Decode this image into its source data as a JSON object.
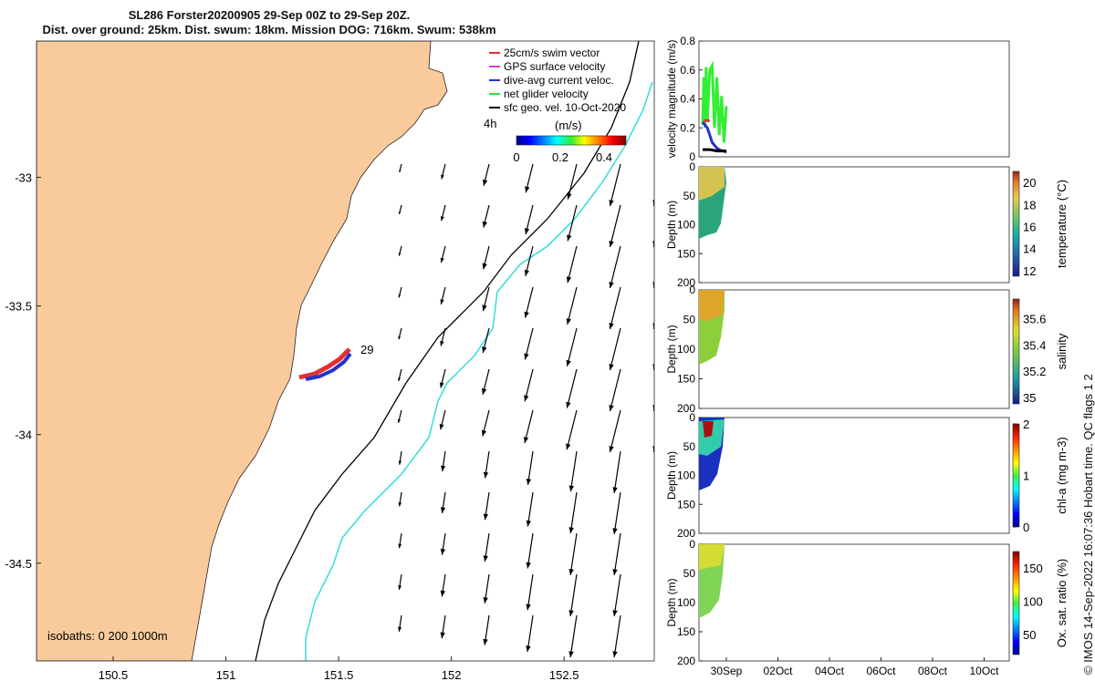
{
  "title": {
    "line1": "SL286 Forster20200905 29-Sep 00Z to 29-Sep 20Z.",
    "line2": "Dist. over ground: 25km. Dist. swum: 18km. Mission DOG: 716km. Swum: 538km"
  },
  "map": {
    "lon_ticks": [
      "150.5",
      "151",
      "151.5",
      "152",
      "152.5"
    ],
    "lon_values": [
      150.5,
      151,
      151.5,
      152,
      152.5
    ],
    "lat_ticks": [
      "-33",
      "-33.5",
      "-34",
      "-34.5"
    ],
    "lat_values": [
      -33,
      -33.5,
      -34,
      -34.5
    ],
    "xlim": [
      150.16,
      152.9
    ],
    "ylim": [
      -34.88,
      -32.47
    ],
    "legend": [
      {
        "label": "25cm/s swim vector",
        "color": "#e03030"
      },
      {
        "label": "GPS surface velocity",
        "color": "#cc44cc"
      },
      {
        "label": "dive-avg current veloc.",
        "color": "#2233cc"
      },
      {
        "label": "net glider velocity",
        "color": "#33dd33"
      },
      {
        "label": "sfc geo. vel. 10-Oct-2020",
        "color": "#000000"
      }
    ],
    "legend_extra": "4h",
    "colorbar_title": "(m/s)",
    "colorbar_ticks": [
      "0",
      "0.2",
      "0.4"
    ],
    "colorbar_values": [
      0,
      0.2,
      0.4
    ],
    "colorbar_range": [
      0,
      0.5
    ],
    "track_label": "29",
    "isobaths_label": "isobaths: 0   200  1000m",
    "land_color": "#f9cb9c",
    "isobath_200_color": "#000000",
    "isobath_1000_color": "#33dddd"
  },
  "chart_data": [
    {
      "type": "line",
      "title": "",
      "ylabel": "velocity magnitude (m/s)",
      "ylim": [
        0,
        0.8
      ],
      "yticks": [
        "0",
        "0.2",
        "0.4",
        "0.6",
        "0.8"
      ],
      "ytick_values": [
        0,
        0.2,
        0.4,
        0.6,
        0.8
      ],
      "series": [
        {
          "color": "#33ee33",
          "x": [
            0.0,
            0.05,
            0.1,
            0.15,
            0.2,
            0.3,
            0.4,
            0.5,
            0.6,
            0.7,
            0.8,
            0.9,
            1.0
          ],
          "values": [
            0.22,
            0.55,
            0.2,
            0.62,
            0.25,
            0.6,
            0.63,
            0.2,
            0.55,
            0.15,
            0.42,
            0.1,
            0.35
          ]
        },
        {
          "color": "#2233cc",
          "x": [
            0.0,
            0.1,
            0.2,
            0.3,
            0.4,
            0.5,
            0.6,
            0.7,
            0.8,
            0.9,
            1.0
          ],
          "values": [
            0.24,
            0.22,
            0.2,
            0.15,
            0.1,
            0.08,
            0.06,
            0.05,
            0.04,
            0.04,
            0.03
          ]
        },
        {
          "color": "#000000",
          "x": [
            0.0,
            0.3,
            0.6,
            1.0
          ],
          "values": [
            0.05,
            0.05,
            0.04,
            0.04
          ]
        },
        {
          "color": "#e03030",
          "x": [
            0.05,
            0.3
          ],
          "values": [
            0.25,
            0.25
          ]
        }
      ]
    },
    {
      "type": "heatmap",
      "ylabel": "Depth (m)",
      "ylim": [
        200,
        0
      ],
      "yticks": [
        "0",
        "50",
        "100",
        "150",
        "200"
      ],
      "ytick_values": [
        0,
        50,
        100,
        150,
        200
      ],
      "colorbar_label": "temperature (°C)",
      "colorbar_ticks": [
        "12",
        "14",
        "16",
        "18",
        "20"
      ],
      "colorbar_values": [
        12,
        14,
        16,
        18,
        20
      ],
      "colorbar_range": [
        11.5,
        21
      ]
    },
    {
      "type": "heatmap",
      "ylabel": "Depth (m)",
      "ylim": [
        200,
        0
      ],
      "yticks": [
        "0",
        "50",
        "100",
        "150",
        "200"
      ],
      "ytick_values": [
        0,
        50,
        100,
        150,
        200
      ],
      "colorbar_label": "salinity",
      "colorbar_ticks": [
        "35",
        "35.2",
        "35.4",
        "35.6"
      ],
      "colorbar_values": [
        35,
        35.2,
        35.4,
        35.6
      ],
      "colorbar_range": [
        34.95,
        35.75
      ]
    },
    {
      "type": "heatmap",
      "ylabel": "Depth (m)",
      "ylim": [
        200,
        0
      ],
      "yticks": [
        "0",
        "50",
        "100",
        "150",
        "200"
      ],
      "ytick_values": [
        0,
        50,
        100,
        150,
        200
      ],
      "colorbar_label": "chl-a (mg m-3)",
      "colorbar_ticks": [
        "0",
        "1",
        "2"
      ],
      "colorbar_values": [
        0,
        1,
        2
      ],
      "colorbar_range": [
        0,
        2
      ]
    },
    {
      "type": "heatmap",
      "ylabel": "Depth (m)",
      "ylim": [
        200,
        0
      ],
      "yticks": [
        "0",
        "50",
        "100",
        "150",
        "200"
      ],
      "ytick_values": [
        0,
        50,
        100,
        150,
        200
      ],
      "colorbar_label": "Ox. sat. ratio (%)",
      "colorbar_ticks": [
        "50",
        "100",
        "150"
      ],
      "colorbar_values": [
        50,
        100,
        150
      ],
      "colorbar_range": [
        20,
        175
      ],
      "xticks": [
        "30Sep",
        "02Oct",
        "04Oct",
        "06Oct",
        "08Oct",
        "10Oct"
      ]
    }
  ],
  "side_note": "© IMOS 14-Sep-2022 16:07:36 Hobart time. QC flags 1  2"
}
